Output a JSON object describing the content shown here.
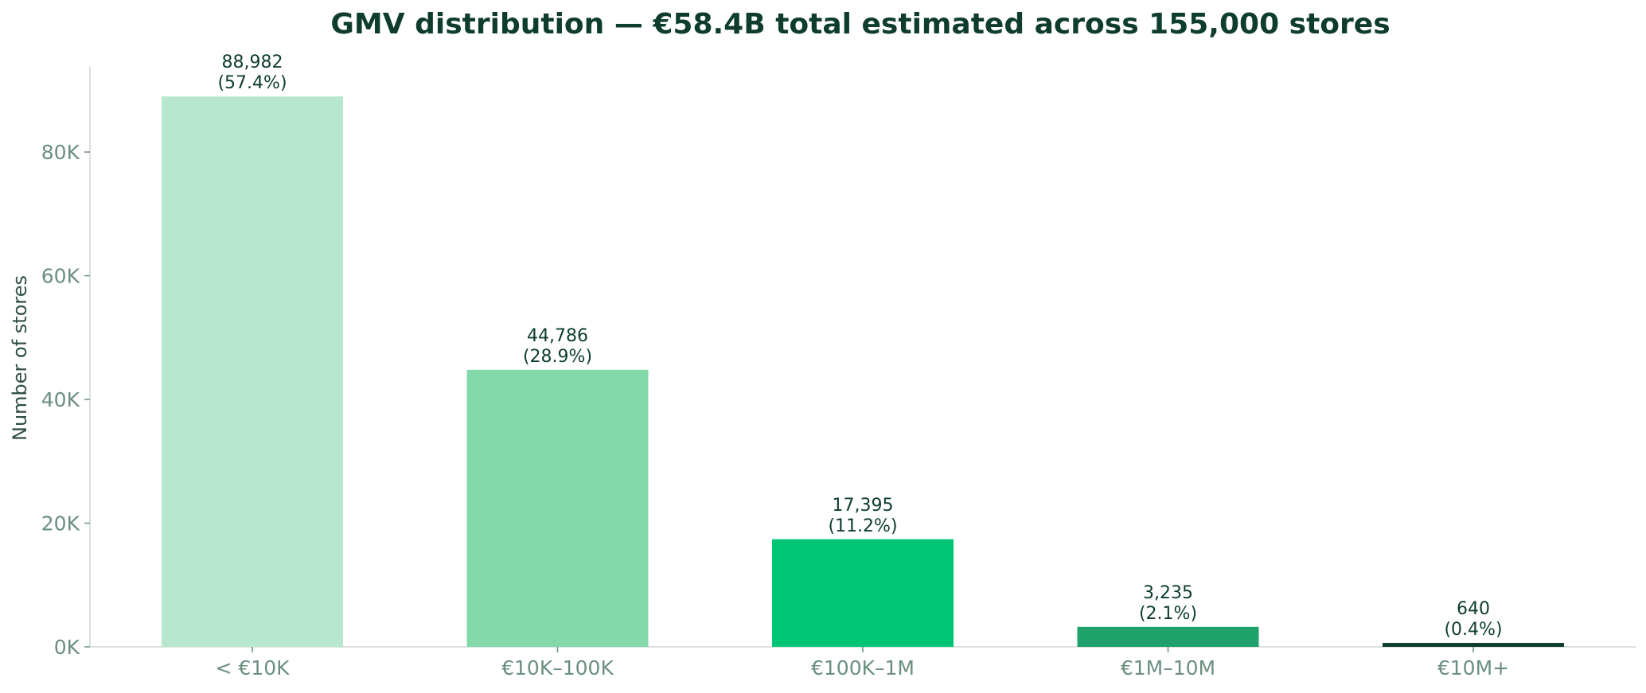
{
  "chart_data": {
    "type": "bar",
    "title": "GMV distribution — €58.4B total estimated across 155,000 stores",
    "xlabel": "",
    "ylabel": "Number of stores",
    "categories": [
      "< €10K",
      "€10K–100K",
      "€100K–1M",
      "€1M–10M",
      "€10M+"
    ],
    "values": [
      88982,
      44786,
      17395,
      3235,
      640
    ],
    "value_labels": [
      "88,982",
      "44,786",
      "17,395",
      "3,235",
      "640"
    ],
    "percent_labels": [
      "(57.4%)",
      "(28.9%)",
      "(11.2%)",
      "(2.1%)",
      "(0.4%)"
    ],
    "bar_colors": [
      "#b7e8cf",
      "#84d9ab",
      "#00c575",
      "#1ea16a",
      "#0e3d2d"
    ],
    "ylim": [
      0,
      93900
    ],
    "yticks": [
      0,
      20000,
      40000,
      60000,
      80000
    ],
    "ytick_labels": [
      "0K",
      "20K",
      "40K",
      "60K",
      "80K"
    ],
    "grid": false,
    "legend": "none"
  },
  "colors": {
    "title": "#0e3d2d",
    "ylabel": "#2f4f44",
    "tick_label": "#6b8f7f",
    "data_label": "#0e3d2d",
    "axis_line": "#cfd6d3"
  }
}
